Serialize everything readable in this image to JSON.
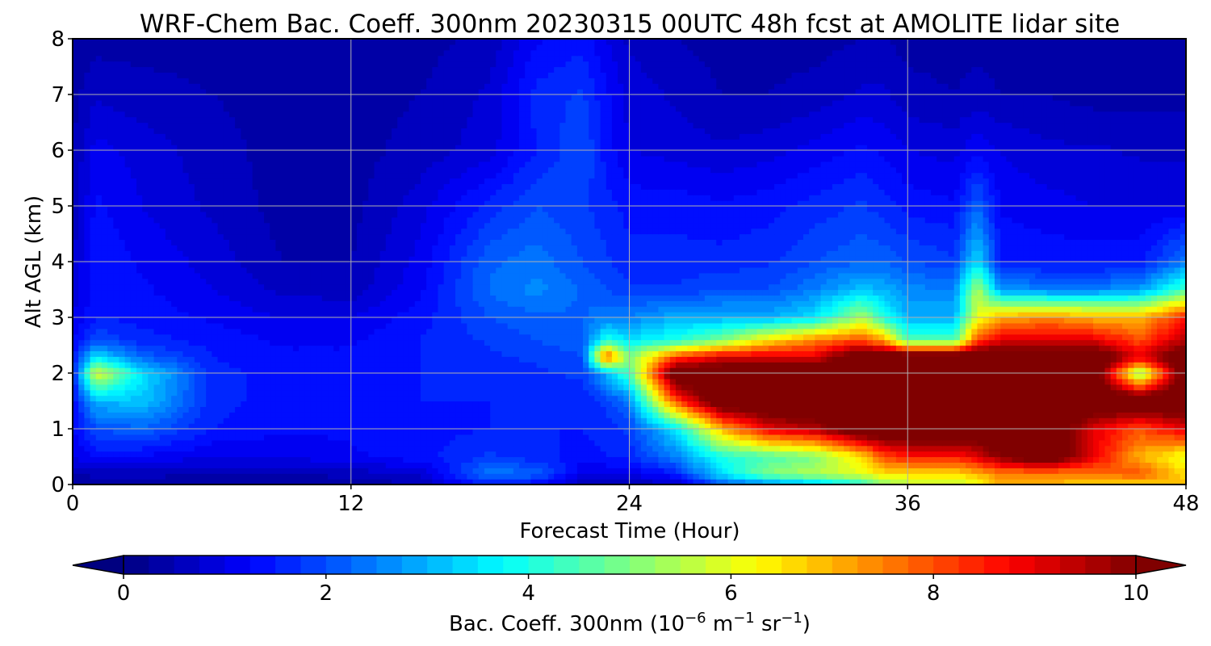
{
  "chart_data": {
    "type": "heatmap",
    "title": "WRF-Chem Bac. Coeff. 300nm  20230315 00UTC 48h fcst at AMOLITE lidar site",
    "xlabel": "Forecast Time (Hour)",
    "ylabel": "Alt AGL (km)",
    "xlim": [
      0,
      48
    ],
    "ylim": [
      0,
      8
    ],
    "x_ticks": [
      "0",
      "12",
      "24",
      "36",
      "48"
    ],
    "y_ticks": [
      "0",
      "1",
      "2",
      "3",
      "4",
      "5",
      "6",
      "7",
      "8"
    ],
    "grid": true,
    "colormap": "jet",
    "colorbar": {
      "label_main": "Bac. Coeff. 300nm  (10",
      "label_exp1": "−6",
      "label_mid": " m",
      "label_exp2": "−1",
      "label_mid2": " sr",
      "label_exp3": "−1",
      "label_end": ")",
      "range": [
        0,
        10
      ],
      "ticks": [
        "0",
        "2",
        "4",
        "6",
        "8",
        "10"
      ],
      "extend": "both",
      "orientation": "horizontal"
    },
    "x": [
      0,
      1,
      3,
      6,
      9,
      12,
      15,
      18,
      20,
      22,
      23,
      24,
      26,
      28,
      30,
      32,
      34,
      35,
      36,
      38,
      39,
      40,
      42,
      44,
      46,
      48
    ],
    "y": [
      0,
      0.2,
      0.5,
      1,
      1.5,
      2,
      2.3,
      2.6,
      3,
      3.5,
      4,
      5,
      6,
      7,
      8
    ],
    "z": [
      [
        0.3,
        0.3,
        0.3,
        0.3,
        0.3,
        0.3,
        0.5,
        1.5,
        1.2,
        0.6,
        0.5,
        0.5,
        0.7,
        2.0,
        2.5,
        3.0,
        4.0,
        5.0,
        5.5,
        5.5,
        6.0,
        7.0,
        7.0,
        6.5,
        6.5,
        7.0
      ],
      [
        0.5,
        0.6,
        0.6,
        0.5,
        0.5,
        0.6,
        0.8,
        2.5,
        2.2,
        1.0,
        1.0,
        1.0,
        1.5,
        3.5,
        5.0,
        5.5,
        6.0,
        6.5,
        6.5,
        6.5,
        7.0,
        7.5,
        7.5,
        7.5,
        8.0,
        6.5
      ],
      [
        1.0,
        1.3,
        1.2,
        1.0,
        1.0,
        1.2,
        1.4,
        1.8,
        1.6,
        1.4,
        1.5,
        1.6,
        2.5,
        4.0,
        4.5,
        5.0,
        6.5,
        8.0,
        8.5,
        8.5,
        9.0,
        10.0,
        11.0,
        9.0,
        7.0,
        6.0
      ],
      [
        1.2,
        2.0,
        2.2,
        1.5,
        1.3,
        1.3,
        1.4,
        1.5,
        1.5,
        1.5,
        1.6,
        1.8,
        3.5,
        7.0,
        9.0,
        9.5,
        11.0,
        11.0,
        11.0,
        11.0,
        11.0,
        11.0,
        11.0,
        9.0,
        8.0,
        9.0
      ],
      [
        1.3,
        3.0,
        3.2,
        1.6,
        1.4,
        1.4,
        1.5,
        1.5,
        1.6,
        1.6,
        1.8,
        2.5,
        8.0,
        11.0,
        11.0,
        11.0,
        11.0,
        11.0,
        11.0,
        11.0,
        11.0,
        11.0,
        11.0,
        11.0,
        11.0,
        11.0
      ],
      [
        1.4,
        6.0,
        3.5,
        1.6,
        1.4,
        1.4,
        1.5,
        1.6,
        1.7,
        1.8,
        3.0,
        4.5,
        11.0,
        11.0,
        11.0,
        11.0,
        11.0,
        11.0,
        11.0,
        11.0,
        11.0,
        11.0,
        11.0,
        11.0,
        5.0,
        11.0
      ],
      [
        1.3,
        3.5,
        2.2,
        1.5,
        1.3,
        1.3,
        1.5,
        1.7,
        1.8,
        2.0,
        8.0,
        5.0,
        8.0,
        9.0,
        9.0,
        9.0,
        11.0,
        11.0,
        11.0,
        11.0,
        11.0,
        11.0,
        11.0,
        11.0,
        9.0,
        11.0
      ],
      [
        1.2,
        2.0,
        1.6,
        1.4,
        1.2,
        1.2,
        1.5,
        1.8,
        2.0,
        2.2,
        4.0,
        3.5,
        4.0,
        5.0,
        6.5,
        7.5,
        8.0,
        7.0,
        4.5,
        4.5,
        8.0,
        9.0,
        9.0,
        9.0,
        8.0,
        9.5
      ],
      [
        1.0,
        1.5,
        1.4,
        1.2,
        1.0,
        1.0,
        1.4,
        2.0,
        2.2,
        2.2,
        2.5,
        2.5,
        3.0,
        3.0,
        3.0,
        3.5,
        5.5,
        4.0,
        3.0,
        3.0,
        6.0,
        7.0,
        7.5,
        7.0,
        7.0,
        8.5
      ],
      [
        0.8,
        1.4,
        1.3,
        1.0,
        0.7,
        0.6,
        1.2,
        2.3,
        2.6,
        2.2,
        2.0,
        1.8,
        1.8,
        2.0,
        2.0,
        2.5,
        3.2,
        3.0,
        2.6,
        2.5,
        5.5,
        2.8,
        2.5,
        2.5,
        2.8,
        4.5
      ],
      [
        0.7,
        1.5,
        1.2,
        0.9,
        0.5,
        0.5,
        1.1,
        2.2,
        2.4,
        2.0,
        1.8,
        1.6,
        1.6,
        1.6,
        1.7,
        2.0,
        2.2,
        2.2,
        2.0,
        1.8,
        3.5,
        1.5,
        1.4,
        1.4,
        1.4,
        2.5
      ],
      [
        0.6,
        1.3,
        1.0,
        0.7,
        0.4,
        0.4,
        0.9,
        1.6,
        2.0,
        1.8,
        1.6,
        1.4,
        1.4,
        1.3,
        1.4,
        1.6,
        1.8,
        1.6,
        1.4,
        1.3,
        2.2,
        1.2,
        1.1,
        1.0,
        1.0,
        1.0
      ],
      [
        0.5,
        1.1,
        0.9,
        0.6,
        0.4,
        0.4,
        0.6,
        0.9,
        1.5,
        2.0,
        1.4,
        1.0,
        0.9,
        0.8,
        0.9,
        1.1,
        1.3,
        1.2,
        1.0,
        0.9,
        1.2,
        1.0,
        0.8,
        0.8,
        0.7,
        0.7
      ],
      [
        0.4,
        0.7,
        0.6,
        0.5,
        0.4,
        0.4,
        0.5,
        0.8,
        1.6,
        1.8,
        1.3,
        0.9,
        0.7,
        0.5,
        0.5,
        0.6,
        0.8,
        0.8,
        0.6,
        0.5,
        0.6,
        0.5,
        0.5,
        0.4,
        0.4,
        0.4
      ],
      [
        0.3,
        0.4,
        0.4,
        0.4,
        0.3,
        0.3,
        0.4,
        0.6,
        1.2,
        1.4,
        1.0,
        0.7,
        0.5,
        0.4,
        0.4,
        0.4,
        0.5,
        0.5,
        0.4,
        0.4,
        0.4,
        0.4,
        0.3,
        0.3,
        0.3,
        0.3
      ]
    ]
  }
}
